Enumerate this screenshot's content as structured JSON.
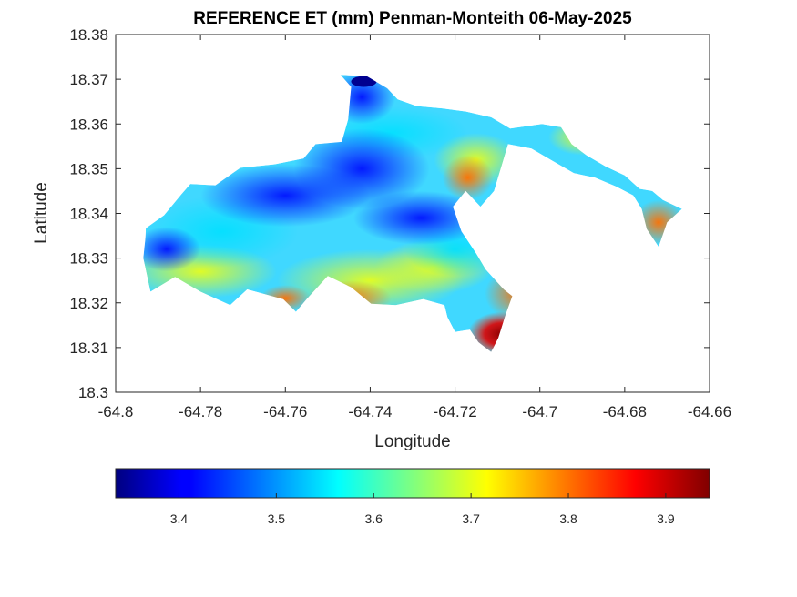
{
  "chart_data": {
    "type": "heatmap",
    "title": "REFERENCE ET (mm) Penman-Monteith 06-May-2025",
    "xlabel": "Longitude",
    "ylabel": "Latitude",
    "xlim": [
      -64.8,
      -64.66
    ],
    "ylim": [
      18.3,
      18.38
    ],
    "xticks": [
      "-64.8",
      "-64.78",
      "-64.76",
      "-64.74",
      "-64.72",
      "-64.7",
      "-64.68",
      "-64.66"
    ],
    "yticks": [
      "18.3",
      "18.31",
      "18.32",
      "18.33",
      "18.34",
      "18.35",
      "18.36",
      "18.37",
      "18.38"
    ],
    "colormap": "jet",
    "colorbar": {
      "location": "bottom",
      "range": [
        3.335,
        3.945
      ],
      "ticks": [
        "3.4",
        "3.5",
        "3.6",
        "3.7",
        "3.8",
        "3.9"
      ]
    },
    "grid": false,
    "region_outline": [
      [
        -64.7929,
        18.3367
      ],
      [
        -64.7886,
        18.3396
      ],
      [
        -64.7845,
        18.3443
      ],
      [
        -64.7824,
        18.3466
      ],
      [
        -64.7765,
        18.3463
      ],
      [
        -64.7706,
        18.3502
      ],
      [
        -64.7625,
        18.351
      ],
      [
        -64.7557,
        18.3523
      ],
      [
        -64.7529,
        18.3555
      ],
      [
        -64.7467,
        18.356
      ],
      [
        -64.7452,
        18.361
      ],
      [
        -64.7445,
        18.3683
      ],
      [
        -64.747,
        18.371
      ],
      [
        -64.7408,
        18.3707
      ],
      [
        -64.736,
        18.368
      ],
      [
        -64.7335,
        18.3655
      ],
      [
        -64.729,
        18.364
      ],
      [
        -64.723,
        18.3635
      ],
      [
        -64.7175,
        18.3628
      ],
      [
        -64.7115,
        18.3615
      ],
      [
        -64.707,
        18.359
      ],
      [
        -64.6995,
        18.36
      ],
      [
        -64.695,
        18.3593
      ],
      [
        -64.6925,
        18.3555
      ],
      [
        -64.689,
        18.353
      ],
      [
        -64.6845,
        18.3505
      ],
      [
        -64.68,
        18.3485
      ],
      [
        -64.6765,
        18.3455
      ],
      [
        -64.6735,
        18.345
      ],
      [
        -64.671,
        18.343
      ],
      [
        -64.6665,
        18.341
      ],
      [
        -64.67,
        18.338
      ],
      [
        -64.672,
        18.3325
      ],
      [
        -64.6748,
        18.3365
      ],
      [
        -64.676,
        18.341
      ],
      [
        -64.678,
        18.344
      ],
      [
        -64.682,
        18.346
      ],
      [
        -64.687,
        18.348
      ],
      [
        -64.692,
        18.349
      ],
      [
        -64.6975,
        18.352
      ],
      [
        -64.702,
        18.3545
      ],
      [
        -64.7075,
        18.3555
      ],
      [
        -64.7108,
        18.345
      ],
      [
        -64.714,
        18.3415
      ],
      [
        -64.7175,
        18.345
      ],
      [
        -64.7205,
        18.3415
      ],
      [
        -64.7185,
        18.336
      ],
      [
        -64.715,
        18.331
      ],
      [
        -64.7128,
        18.3275
      ],
      [
        -64.7085,
        18.323
      ],
      [
        -64.7065,
        18.3215
      ],
      [
        -64.7082,
        18.317
      ],
      [
        -64.7098,
        18.3122
      ],
      [
        -64.7115,
        18.309
      ],
      [
        -64.7145,
        18.3112
      ],
      [
        -64.7165,
        18.314
      ],
      [
        -64.72,
        18.3135
      ],
      [
        -64.7218,
        18.3168
      ],
      [
        -64.7225,
        18.3195
      ],
      [
        -64.7275,
        18.3208
      ],
      [
        -64.734,
        18.3195
      ],
      [
        -64.7398,
        18.3198
      ],
      [
        -64.7445,
        18.3235
      ],
      [
        -64.75,
        18.326
      ],
      [
        -64.7548,
        18.321
      ],
      [
        -64.7575,
        18.318
      ],
      [
        -64.7605,
        18.3208
      ],
      [
        -64.769,
        18.323
      ],
      [
        -64.773,
        18.3195
      ],
      [
        -64.78,
        18.3225
      ],
      [
        -64.786,
        18.3258
      ],
      [
        -64.7918,
        18.3225
      ],
      [
        -64.7935,
        18.33
      ],
      [
        -64.793,
        18.3345
      ]
    ]
  }
}
